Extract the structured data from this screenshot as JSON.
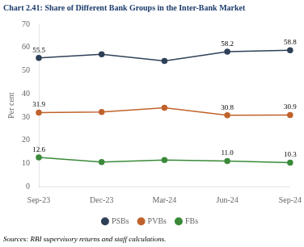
{
  "chart_data": {
    "type": "line",
    "title": "Chart 2.41: Share of Different Bank Groups in the Inter-Bank Market",
    "source": "Sources: RBI supervisory returns and staff calculations.",
    "y_label": "Per cent",
    "categories": [
      "Sep-23",
      "Dec-23",
      "Mar-24",
      "Jun-24",
      "Sep-24"
    ],
    "series": [
      {
        "name": "PSBs",
        "color": "#2e4057",
        "marker": "circle",
        "values": [
          55.5,
          57.0,
          54.2,
          58.2,
          58.8
        ]
      },
      {
        "name": "PVBs",
        "color": "#c0622b",
        "marker": "circle",
        "values": [
          31.9,
          32.2,
          34.0,
          30.8,
          30.9
        ]
      },
      {
        "name": "FBs",
        "color": "#3a8a3a",
        "marker": "circle",
        "values": [
          12.6,
          10.6,
          11.5,
          11.0,
          10.3
        ]
      }
    ],
    "annotations": [
      {
        "text": "55.5",
        "x": "Sep-23",
        "y": 55.5
      },
      {
        "text": "58.2",
        "x": "Jun-24",
        "y": 58.2
      },
      {
        "text": "58.8",
        "x": "Sep-24",
        "y": 58.8
      },
      {
        "text": "31.9",
        "x": "Sep-23",
        "y": 31.9
      },
      {
        "text": "30.8",
        "x": "Jun-24",
        "y": 30.8
      },
      {
        "text": "30.9",
        "x": "Sep-24",
        "y": 30.9
      },
      {
        "text": "12.6",
        "x": "Sep-23",
        "y": 12.6
      },
      {
        "text": "11.0",
        "x": "Jun-24",
        "y": 11.0
      },
      {
        "text": "10.3",
        "x": "Sep-24",
        "y": 10.3
      }
    ],
    "ylim": [
      0,
      70
    ],
    "yticks": [
      0,
      10,
      20,
      30,
      40,
      50,
      60,
      70
    ],
    "grid": false,
    "legend": "bottom"
  }
}
